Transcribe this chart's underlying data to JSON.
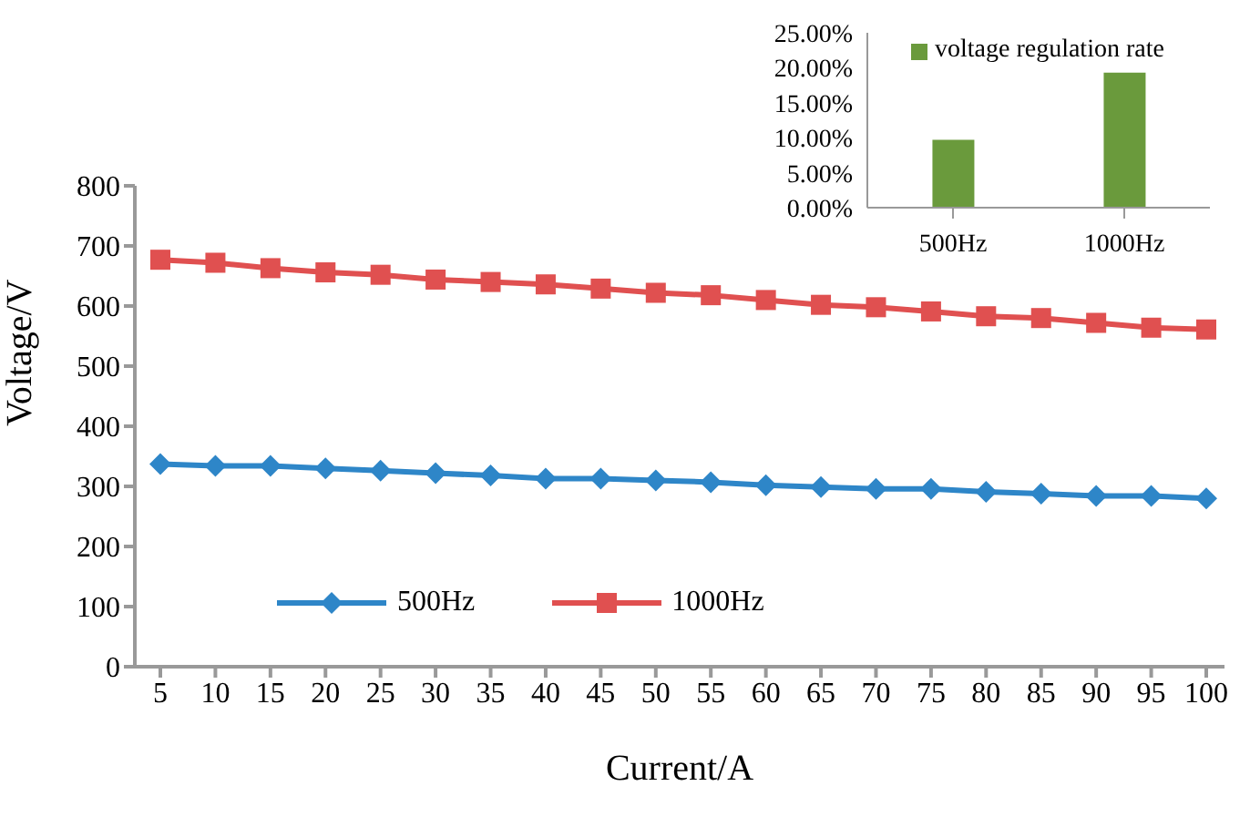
{
  "chart_data": [
    {
      "type": "line",
      "xlabel": "Current/A",
      "ylabel": "Voltage/V",
      "categories": [
        "5",
        "10",
        "15",
        "20",
        "25",
        "30",
        "35",
        "40",
        "45",
        "50",
        "55",
        "60",
        "65",
        "70",
        "75",
        "80",
        "85",
        "90",
        "95",
        "100"
      ],
      "series": [
        {
          "name": "500Hz",
          "color": "#2e86c8",
          "marker": "diamond",
          "values": [
            337,
            334,
            334,
            330,
            326,
            322,
            318,
            313,
            313,
            310,
            307,
            302,
            299,
            296,
            296,
            291,
            288,
            284,
            284,
            280
          ]
        },
        {
          "name": "1000Hz",
          "color": "#e05050",
          "marker": "square",
          "values": [
            677,
            672,
            663,
            656,
            652,
            644,
            640,
            636,
            629,
            622,
            618,
            610,
            602,
            598,
            591,
            583,
            580,
            572,
            564,
            561
          ]
        }
      ],
      "ylim": [
        0,
        800
      ],
      "yticks": [
        0,
        100,
        200,
        300,
        400,
        500,
        600,
        700,
        800
      ],
      "grid": false,
      "legend": "bottom left",
      "line_style": "solid"
    },
    {
      "type": "bar",
      "categories": [
        "500Hz",
        "1000Hz"
      ],
      "series": [
        {
          "name": "voltage regulation rate",
          "color": "#6a9a3c",
          "values": [
            9.7,
            19.3
          ]
        }
      ],
      "ylim": [
        0,
        25
      ],
      "yticks": [
        {
          "value": 0,
          "label": "0.00%"
        },
        {
          "value": 5,
          "label": "5.00%"
        },
        {
          "value": 10,
          "label": "10.00%"
        },
        {
          "value": 15,
          "label": "15.00%"
        },
        {
          "value": 20,
          "label": "20.00%"
        },
        {
          "value": 25,
          "label": "25.00%"
        }
      ],
      "grid": false,
      "legend": "top"
    }
  ]
}
